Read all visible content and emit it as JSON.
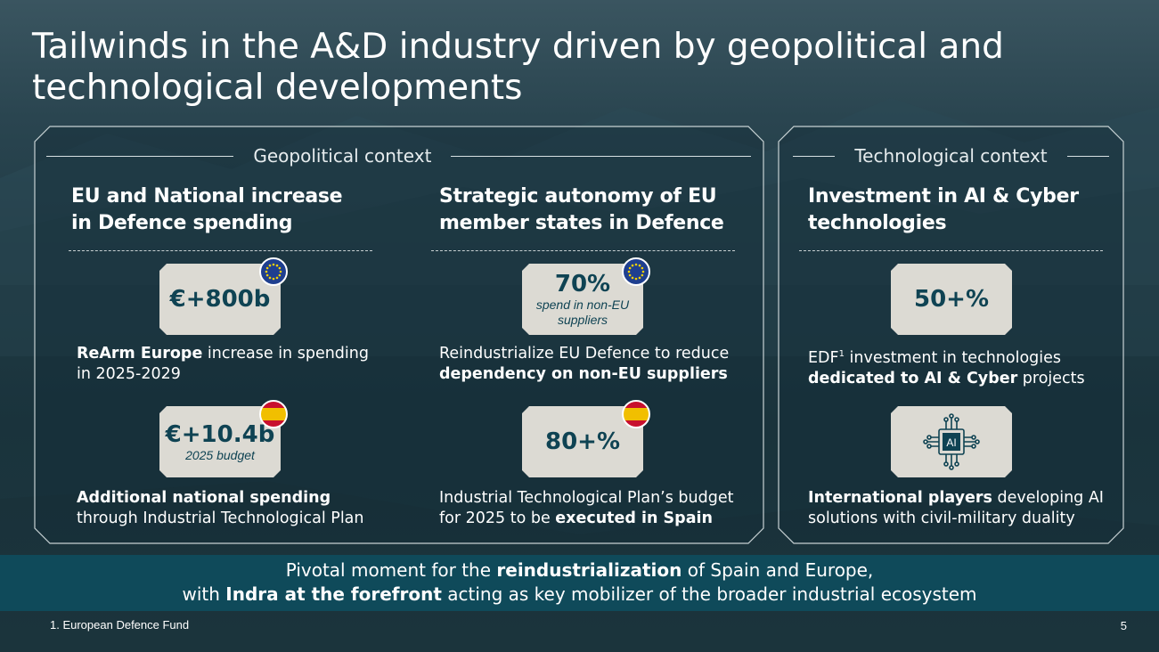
{
  "title": "Tailwinds in the A&D industry driven by geopolitical and technological developments",
  "geo": {
    "section_label": "Geopolitical context",
    "col1": {
      "title_l1": "EU and National increase",
      "title_l2": "in Defence spending",
      "card1": {
        "value": "€+800b"
      },
      "desc1": {
        "bold": "ReArm Europe",
        "rest": " increase in spending",
        "line2": "in 2025-2029"
      },
      "card2": {
        "value": "€+10.4b",
        "sub": "2025 budget"
      },
      "desc2": {
        "bold": "Additional national spending",
        "line2": "through Industrial Technological Plan"
      }
    },
    "col2": {
      "title_l1": "Strategic autonomy of EU",
      "title_l2": "member states in Defence",
      "card1": {
        "value": "70%",
        "sub_l1": "spend in non-EU",
        "sub_l2": "suppliers"
      },
      "desc1": {
        "line1": "Reindustrialize EU Defence to reduce",
        "bold": "dependency on non-EU suppliers"
      },
      "card2": {
        "value": "80+%"
      },
      "desc2": {
        "line1": "Industrial Technological Plan’s budget",
        "pre": "for 2025 to be ",
        "bold": "executed in Spain"
      }
    }
  },
  "tech": {
    "section_label": "Technological context",
    "title_l1": "Investment in AI & Cyber",
    "title_l2": "technologies",
    "card1": {
      "value": "50+%"
    },
    "desc1": {
      "pre": "EDF",
      "sup": "1",
      "rest": " investment in technologies",
      "bold": "dedicated to AI & Cyber",
      "post": " projects"
    },
    "card2": {
      "icon_label": "AI"
    },
    "desc2": {
      "bold": "International players",
      "rest": " developing AI",
      "line2": "solutions with civil-military duality"
    }
  },
  "banner": {
    "l1_pre": "Pivotal moment for the ",
    "l1_bold": "reindustrialization",
    "l1_post": " of Spain and Europe,",
    "l2_pre": "with ",
    "l2_bold": "Indra at the forefront",
    "l2_post": " acting as key mobilizer of the broader industrial ecosystem"
  },
  "footnote": "1. European Defence Fund",
  "page_number": "5",
  "colors": {
    "card_bg": "#dcdad3",
    "card_text": "#0f4353",
    "banner_bg": "#0f4a5a"
  }
}
